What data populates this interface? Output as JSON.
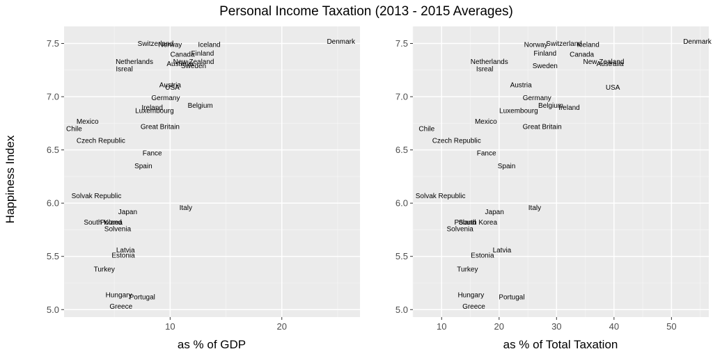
{
  "title": "Personal Income Taxation (2013 - 2015 Averages)",
  "ylabel": "Happiness Index",
  "chart_data": [
    {
      "type": "scatter",
      "xlabel": "as % of GDP",
      "ylabel": "Happiness Index",
      "xlim": [
        0.5,
        27.0
      ],
      "ylim": [
        4.93,
        7.66
      ],
      "xticks": [
        10,
        20
      ],
      "yticks": [
        5.0,
        5.5,
        6.0,
        6.5,
        7.0,
        7.5
      ],
      "grid": true,
      "points": [
        {
          "label": "Denmark",
          "x": 25.3,
          "y": 7.52
        },
        {
          "label": "Switzerland",
          "x": 8.7,
          "y": 7.5
        },
        {
          "label": "Norway",
          "x": 10.0,
          "y": 7.49
        },
        {
          "label": "Iceland",
          "x": 13.5,
          "y": 7.49
        },
        {
          "label": "Canada",
          "x": 11.1,
          "y": 7.4
        },
        {
          "label": "Finland",
          "x": 12.9,
          "y": 7.41
        },
        {
          "label": "Netherlands",
          "x": 6.8,
          "y": 7.33
        },
        {
          "label": "New Zealand",
          "x": 12.1,
          "y": 7.33
        },
        {
          "label": "Australia",
          "x": 10.9,
          "y": 7.31
        },
        {
          "label": "Sweden",
          "x": 12.1,
          "y": 7.29
        },
        {
          "label": "Isreal",
          "x": 5.9,
          "y": 7.26
        },
        {
          "label": "Austria",
          "x": 10.0,
          "y": 7.11
        },
        {
          "label": "USA",
          "x": 10.2,
          "y": 7.09
        },
        {
          "label": "Germany",
          "x": 9.6,
          "y": 6.99
        },
        {
          "label": "Belgium",
          "x": 12.7,
          "y": 6.92
        },
        {
          "label": "Ireland",
          "x": 8.4,
          "y": 6.9
        },
        {
          "label": "Luxembourg",
          "x": 8.6,
          "y": 6.87
        },
        {
          "label": "Mexico",
          "x": 2.6,
          "y": 6.77
        },
        {
          "label": "Great Britain",
          "x": 9.1,
          "y": 6.72
        },
        {
          "label": "Chile",
          "x": 1.4,
          "y": 6.7
        },
        {
          "label": "Czech Republic",
          "x": 3.8,
          "y": 6.59
        },
        {
          "label": "Fance",
          "x": 8.4,
          "y": 6.47
        },
        {
          "label": "Spain",
          "x": 7.6,
          "y": 6.35
        },
        {
          "label": "Solvak Republic",
          "x": 3.4,
          "y": 6.07
        },
        {
          "label": "Italy",
          "x": 11.4,
          "y": 5.96
        },
        {
          "label": "Japan",
          "x": 6.2,
          "y": 5.92
        },
        {
          "label": "South Korea",
          "x": 4.0,
          "y": 5.82
        },
        {
          "label": "Poland",
          "x": 4.7,
          "y": 5.82
        },
        {
          "label": "Solvenia",
          "x": 5.3,
          "y": 5.76
        },
        {
          "label": "Latvia",
          "x": 6.0,
          "y": 5.56
        },
        {
          "label": "Estonia",
          "x": 5.8,
          "y": 5.51
        },
        {
          "label": "Turkey",
          "x": 4.1,
          "y": 5.38
        },
        {
          "label": "Hungary",
          "x": 5.4,
          "y": 5.14
        },
        {
          "label": "Portugal",
          "x": 7.5,
          "y": 5.12
        },
        {
          "label": "Greece",
          "x": 5.6,
          "y": 5.03
        }
      ]
    },
    {
      "type": "scatter",
      "xlabel": "as % of Total Taxation",
      "ylabel": "Happiness Index",
      "xlim": [
        5.0,
        56.5
      ],
      "ylim": [
        4.93,
        7.66
      ],
      "xticks": [
        10,
        20,
        30,
        40,
        50
      ],
      "yticks": [
        5.0,
        5.5,
        6.0,
        6.5,
        7.0,
        7.5
      ],
      "grid": true,
      "points": [
        {
          "label": "Denmark",
          "x": 54.5,
          "y": 7.52
        },
        {
          "label": "Norway",
          "x": 26.4,
          "y": 7.49
        },
        {
          "label": "Switzerland",
          "x": 31.3,
          "y": 7.5
        },
        {
          "label": "Iceland",
          "x": 35.5,
          "y": 7.49
        },
        {
          "label": "Finland",
          "x": 28.0,
          "y": 7.41
        },
        {
          "label": "Canada",
          "x": 34.4,
          "y": 7.4
        },
        {
          "label": "New Zealand",
          "x": 38.2,
          "y": 7.33
        },
        {
          "label": "Australia",
          "x": 39.3,
          "y": 7.31
        },
        {
          "label": "Netherlands",
          "x": 18.3,
          "y": 7.33
        },
        {
          "label": "Isreal",
          "x": 17.5,
          "y": 7.26
        },
        {
          "label": "Sweden",
          "x": 28.0,
          "y": 7.29
        },
        {
          "label": "Austria",
          "x": 23.8,
          "y": 7.11
        },
        {
          "label": "USA",
          "x": 39.8,
          "y": 7.09
        },
        {
          "label": "Germany",
          "x": 26.6,
          "y": 6.99
        },
        {
          "label": "Belgium",
          "x": 29.0,
          "y": 6.92
        },
        {
          "label": "Ireland",
          "x": 32.2,
          "y": 6.9
        },
        {
          "label": "Luxembourg",
          "x": 23.4,
          "y": 6.87
        },
        {
          "label": "Mexico",
          "x": 17.7,
          "y": 6.77
        },
        {
          "label": "Great Britain",
          "x": 27.5,
          "y": 6.72
        },
        {
          "label": "Chile",
          "x": 7.4,
          "y": 6.7
        },
        {
          "label": "Czech Republic",
          "x": 12.6,
          "y": 6.59
        },
        {
          "label": "Fance",
          "x": 17.8,
          "y": 6.47
        },
        {
          "label": "Spain",
          "x": 21.3,
          "y": 6.35
        },
        {
          "label": "Solvak Republic",
          "x": 9.8,
          "y": 6.07
        },
        {
          "label": "Italy",
          "x": 26.2,
          "y": 5.96
        },
        {
          "label": "Japan",
          "x": 19.2,
          "y": 5.92
        },
        {
          "label": "South Korea",
          "x": 16.3,
          "y": 5.82
        },
        {
          "label": "Poland",
          "x": 14.1,
          "y": 5.82
        },
        {
          "label": "Solvenia",
          "x": 13.2,
          "y": 5.76
        },
        {
          "label": "Latvia",
          "x": 20.5,
          "y": 5.56
        },
        {
          "label": "Estonia",
          "x": 17.1,
          "y": 5.51
        },
        {
          "label": "Turkey",
          "x": 14.5,
          "y": 5.38
        },
        {
          "label": "Hungary",
          "x": 15.1,
          "y": 5.14
        },
        {
          "label": "Portugal",
          "x": 22.2,
          "y": 5.12
        },
        {
          "label": "Greece",
          "x": 15.6,
          "y": 5.03
        }
      ]
    }
  ]
}
